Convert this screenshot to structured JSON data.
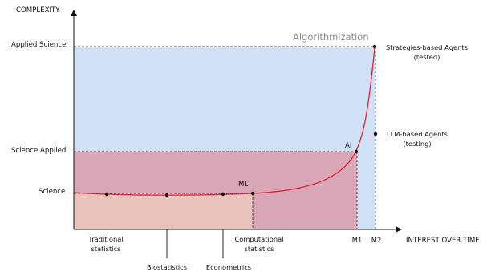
{
  "axes": {
    "y_title": "COMPLEXITY",
    "x_title": "INTEREST OVER TIME"
  },
  "y_levels": {
    "applied_science": "Applied Science",
    "science_applied": "Science Applied",
    "science": "Science"
  },
  "band_title": "Algorithmization",
  "point_labels": {
    "ml": "ML",
    "ai": "AI"
  },
  "x_labels": {
    "traditional_1": "Traditional",
    "traditional_2": "statistics",
    "biostatistics": "Biostatistics",
    "econometrics": "Econometrics",
    "computational_1": "Computational",
    "computational_2": "statistics",
    "m1": "M1",
    "m2": "M2"
  },
  "agents": {
    "strategies_1": "Strategies-based Agents",
    "strategies_2": "(tested)",
    "llm_1": "LLM-based Agents",
    "llm_2": "(testing)"
  },
  "colors": {
    "blue_region": "#cfe0f7",
    "mauve_region": "#d9a7b8",
    "peach_region": "#e8c4bd",
    "curve": "#e4232d",
    "dash": "#444444"
  }
}
